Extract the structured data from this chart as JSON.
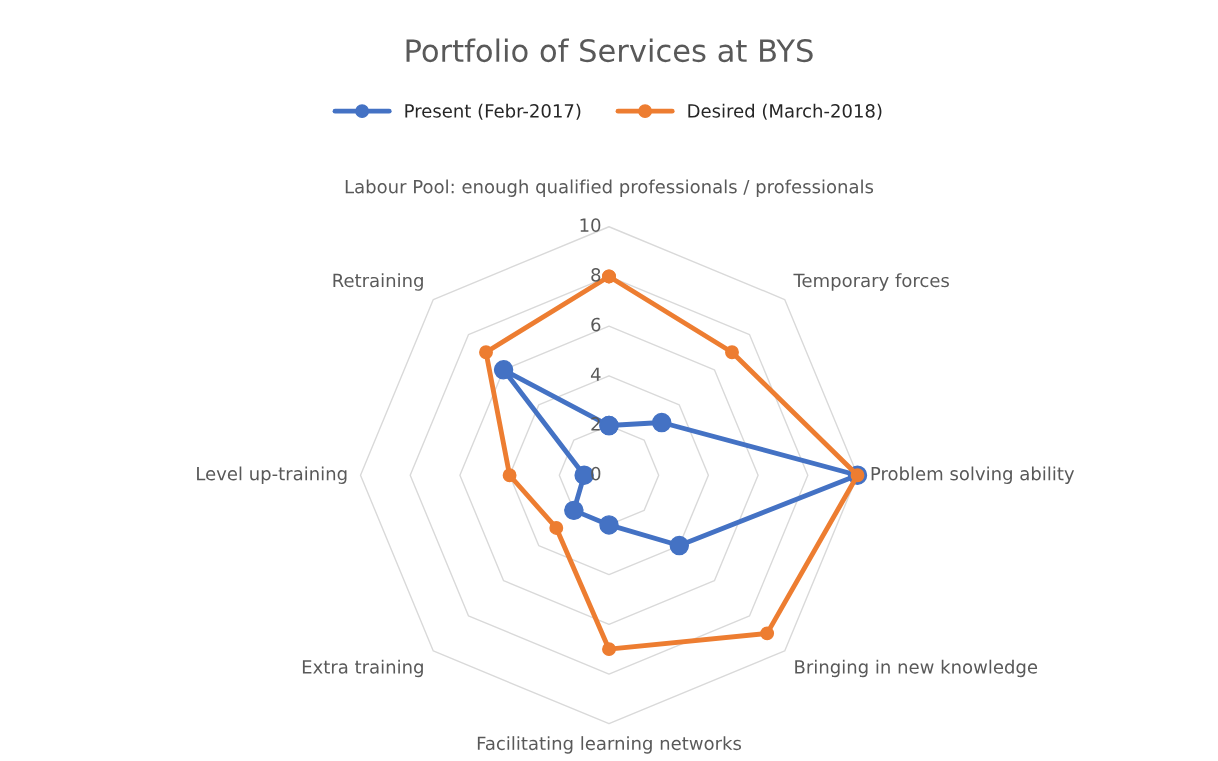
{
  "chart_data": {
    "type": "radar",
    "title": "Portfolio of Services at BYS",
    "categories": [
      "Labour Pool: enough qualified professionals / professionals",
      "Temporary forces",
      "Problem solving ability",
      "Bringing in new knowledge",
      "Facilitating learning networks",
      "Extra training",
      "Level up-training",
      "Retraining"
    ],
    "series": [
      {
        "name": "Present (Febr-2017)",
        "color": "#4472c4",
        "values": [
          2,
          3,
          10,
          4,
          2,
          2,
          1,
          6
        ]
      },
      {
        "name": "Desired (March-2018)",
        "color": "#ed7d31",
        "values": [
          8,
          7,
          10,
          9,
          7,
          3,
          4,
          7
        ]
      }
    ],
    "ylim": [
      0,
      10
    ],
    "yticks": [
      0,
      2,
      4,
      6,
      8,
      10
    ],
    "grid": true,
    "legend": "top",
    "marker": "circle",
    "line_style": "solid"
  }
}
